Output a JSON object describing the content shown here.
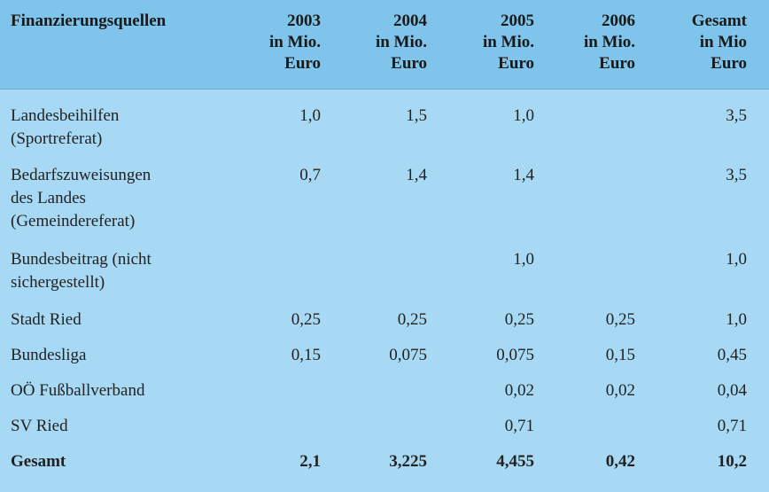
{
  "header": {
    "source_label": "Finanzierungsquellen",
    "columns": [
      [
        "2003",
        "in Mio.",
        "Euro"
      ],
      [
        "2004",
        "in Mio.",
        "Euro"
      ],
      [
        "2005",
        "in Mio.",
        "Euro"
      ],
      [
        "2006",
        "in Mio.",
        "Euro"
      ],
      [
        "Gesamt",
        "in Mio",
        "Euro"
      ]
    ]
  },
  "rows": [
    {
      "label": [
        "Landesbeihilfen",
        "(Sportreferat)"
      ],
      "values": [
        "1,0",
        "1,5",
        "1,0",
        "",
        "3,5"
      ]
    },
    {
      "label": [
        "Bedarfszuweisungen",
        "des Landes",
        "(Gemeindereferat)"
      ],
      "values": [
        "0,7",
        "1,4",
        "1,4",
        "",
        "3,5"
      ]
    },
    {
      "label": [
        "Bundesbeitrag (nicht",
        "sichergestellt)"
      ],
      "values": [
        "",
        "",
        "1,0",
        "",
        "1,0"
      ]
    },
    {
      "label": [
        "Stadt Ried"
      ],
      "values": [
        "0,25",
        "0,25",
        "0,25",
        "0,25",
        "1,0"
      ]
    },
    {
      "label": [
        "Bundesliga"
      ],
      "values": [
        "0,15",
        "0,075",
        "0,075",
        "0,15",
        "0,45"
      ]
    },
    {
      "label": [
        "OÖ Fußballverband"
      ],
      "values": [
        "",
        "",
        "0,02",
        "0,02",
        "0,04"
      ]
    },
    {
      "label": [
        "SV Ried"
      ],
      "values": [
        "",
        "",
        "0,71",
        "",
        "0,71"
      ]
    },
    {
      "label": [
        "Gesamt"
      ],
      "values": [
        "2,1",
        "3,225",
        "4,455",
        "0,42",
        "10,2"
      ]
    }
  ]
}
